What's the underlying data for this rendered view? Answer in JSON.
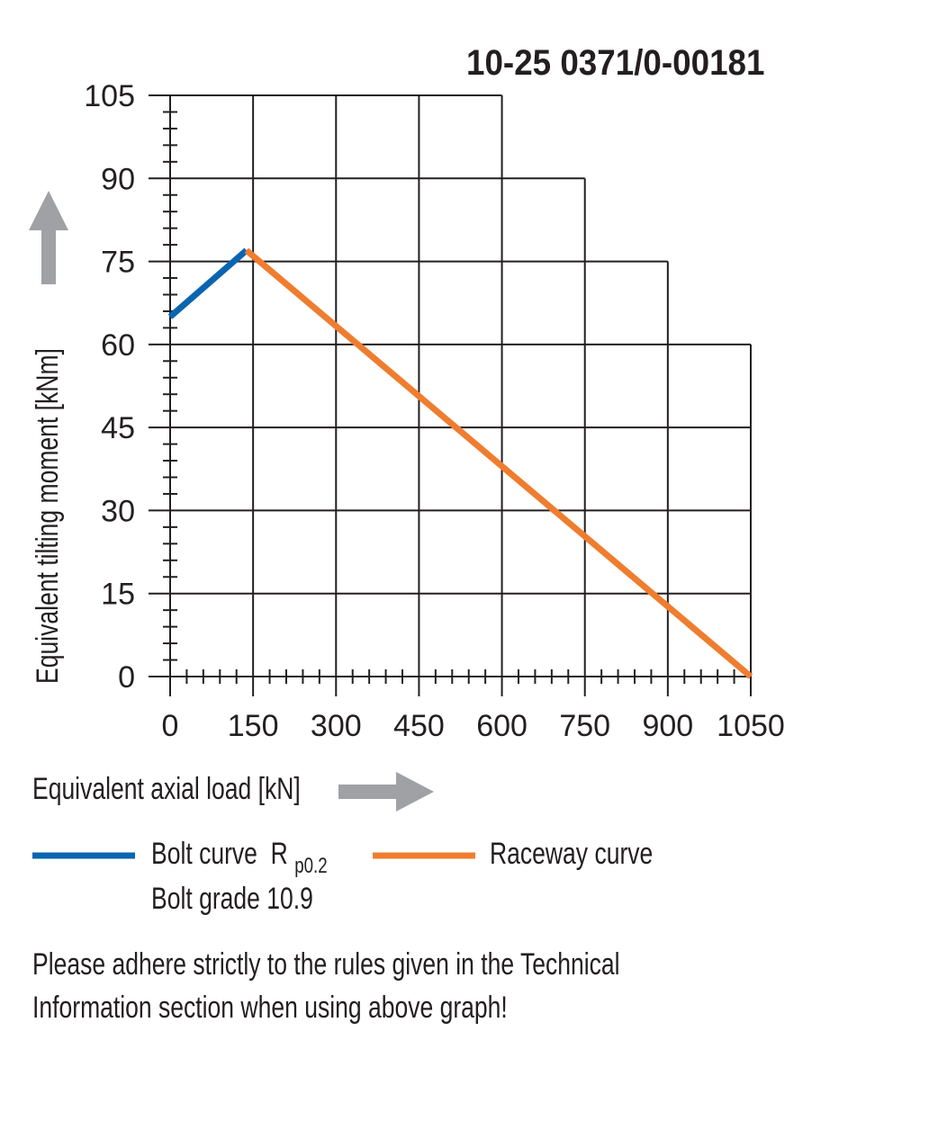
{
  "chart_data": {
    "type": "line",
    "title": "10-25 0371/0-00181",
    "xlabel": "Equivalent axial load [kN]",
    "ylabel": "Equivalent tilting moment [kNm]",
    "xlim": [
      0,
      1050
    ],
    "ylim": [
      0,
      105
    ],
    "x_ticks": [
      "0",
      "150",
      "300",
      "450",
      "600",
      "750",
      "900",
      "1050"
    ],
    "y_ticks": [
      "0",
      "15",
      "30",
      "45",
      "60",
      "75",
      "90",
      "105"
    ],
    "grid": "stepped",
    "series": [
      {
        "name": "Bolt curve R p0.2",
        "legend_name": "Bolt curve",
        "legend_sub": "R",
        "legend_subscript": "p0.2",
        "legend_line2": "Bolt grade 10.9",
        "color": "#0a65b0",
        "points": [
          [
            0,
            65
          ],
          [
            138,
            77
          ]
        ]
      },
      {
        "name": "Raceway curve",
        "legend_name": "Raceway curve",
        "color": "#ef7d2f",
        "points": [
          [
            138,
            77
          ],
          [
            1050,
            0
          ]
        ]
      }
    ],
    "note_line1": "Please adhere strictly to the rules given in the Technical",
    "note_line2": "Information section when using above graph!"
  }
}
